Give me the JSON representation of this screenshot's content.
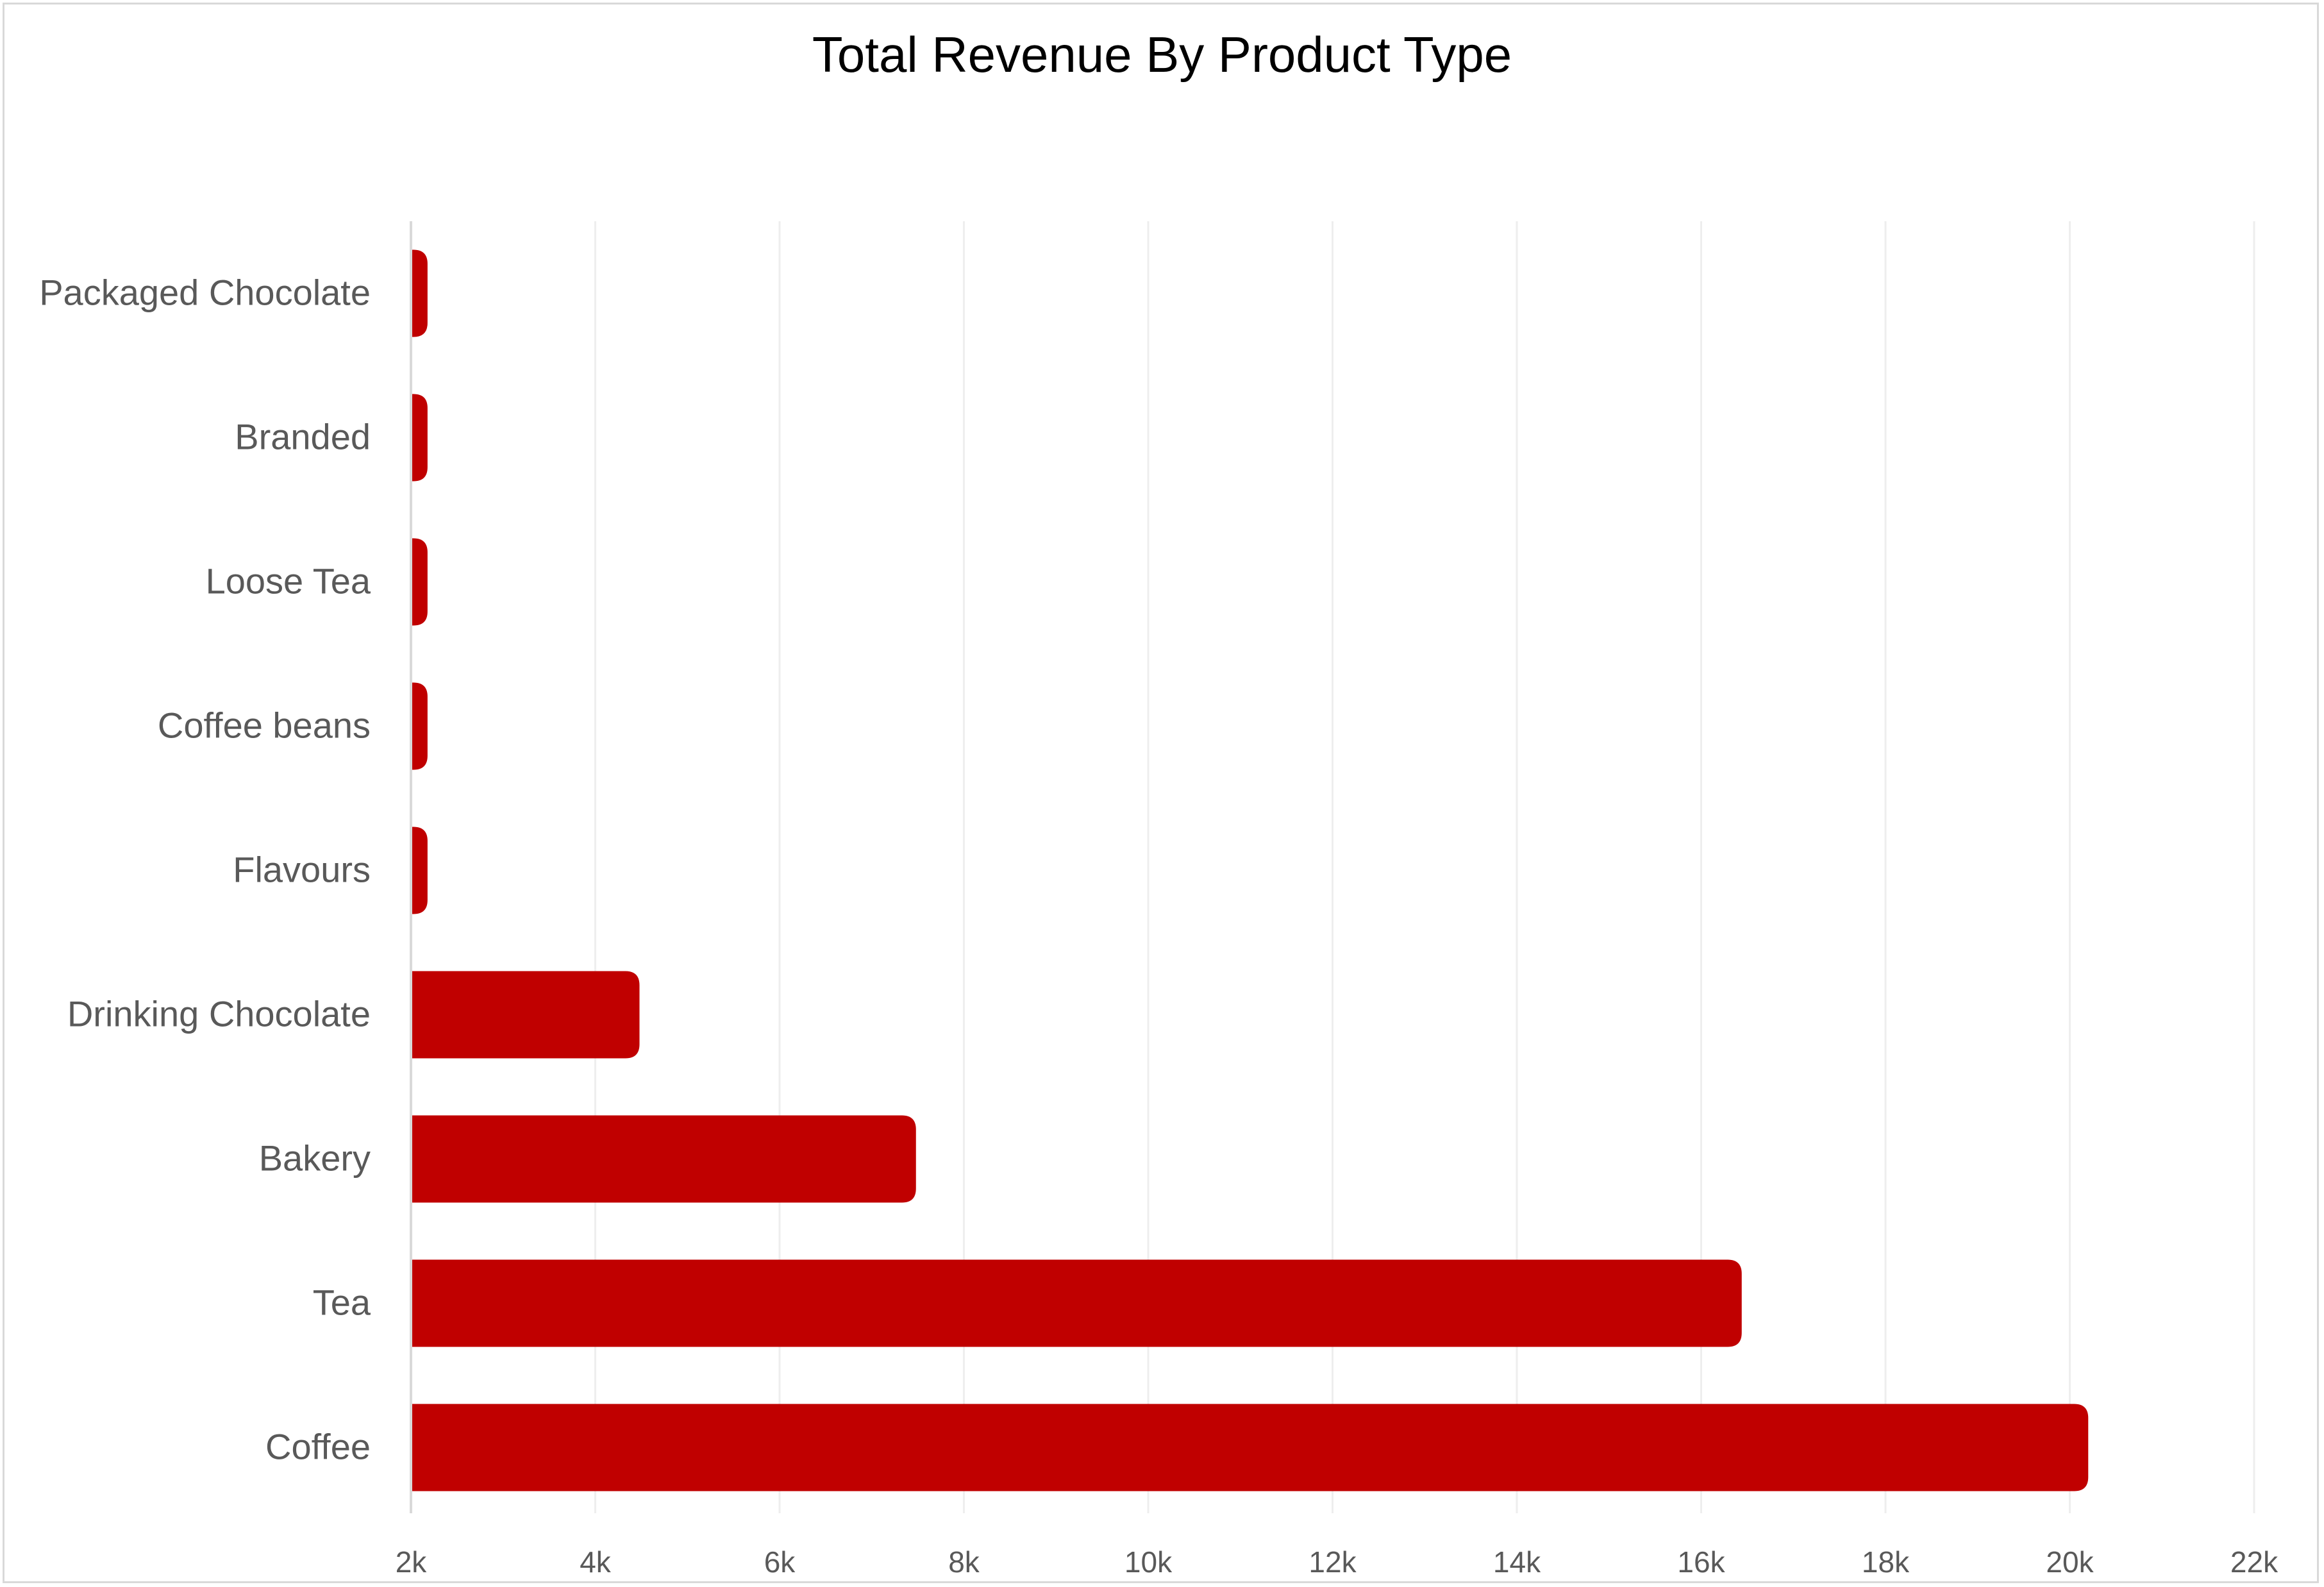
{
  "chart_data": {
    "type": "bar",
    "orientation": "horizontal",
    "title": "Total Revenue By Product Type",
    "xlabel": "",
    "ylabel": "",
    "categories": [
      "Packaged Chocolate",
      "Branded",
      "Loose Tea",
      "Coffee beans",
      "Flavours",
      "Drinking Chocolate",
      "Bakery",
      "Tea",
      "Coffee"
    ],
    "values": [
      2180,
      2180,
      2180,
      2180,
      2180,
      4480,
      7480,
      16440,
      20200
    ],
    "xlim": [
      2000,
      22000
    ],
    "xticks": [
      2000,
      4000,
      6000,
      8000,
      10000,
      12000,
      14000,
      16000,
      18000,
      20000,
      22000
    ],
    "xtick_labels": [
      "2k",
      "4k",
      "6k",
      "8k",
      "10k",
      "12k",
      "14k",
      "16k",
      "18k",
      "20k",
      "22k"
    ],
    "grid": "vertical",
    "legend": "none",
    "colors": {
      "bar": "#c00000",
      "grid": "#eeeeee",
      "axis": "#d9d9d9",
      "label": "#595959",
      "title": "#000000"
    }
  }
}
